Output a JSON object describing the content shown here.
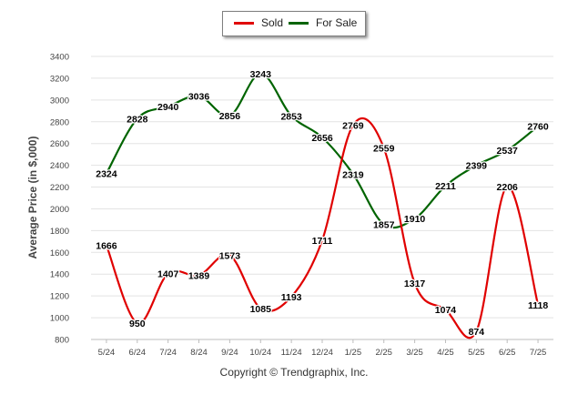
{
  "copyright": "Copyright © Trendgraphix, Inc.",
  "legend": [
    {
      "label": "Sold",
      "color": "#e00000"
    },
    {
      "label": "For Sale",
      "color": "#006400"
    }
  ],
  "chart_data": {
    "type": "line",
    "categories": [
      "5/24",
      "6/24",
      "7/24",
      "8/24",
      "9/24",
      "10/24",
      "11/24",
      "12/24",
      "1/25",
      "2/25",
      "3/25",
      "4/25",
      "5/25",
      "6/25",
      "7/25"
    ],
    "series": [
      {
        "name": "Sold",
        "color": "#e00000",
        "values": [
          1666,
          950,
          1407,
          1389,
          1573,
          1085,
          1193,
          1711,
          2769,
          2559,
          1317,
          1074,
          874,
          2206,
          1118
        ]
      },
      {
        "name": "For Sale",
        "color": "#006400",
        "values": [
          2324,
          2828,
          2940,
          3036,
          2856,
          3243,
          2853,
          2656,
          2319,
          1857,
          1910,
          2211,
          2399,
          2537,
          2760
        ]
      }
    ],
    "ylabel": "Average Price (in $,000)",
    "xlabel": "",
    "ylim": [
      800,
      3400
    ],
    "yticks": [
      800,
      1000,
      1200,
      1400,
      1600,
      1800,
      2000,
      2200,
      2400,
      2600,
      2800,
      3000,
      3200,
      3400
    ],
    "grid": true,
    "legend_position": "top-center"
  }
}
